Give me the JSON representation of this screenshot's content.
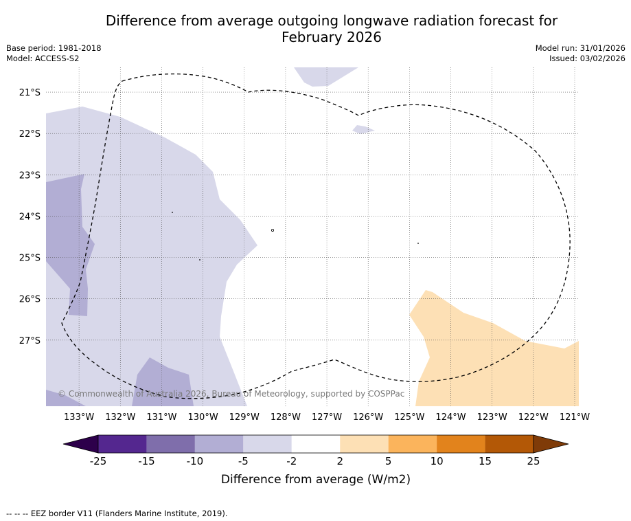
{
  "title": {
    "line1": "Difference from average outgoing longwave radiation forecast for",
    "line2": "February 2026"
  },
  "meta": {
    "base_period": "Base period: 1981-2018",
    "model": "Model: ACCESS-S2",
    "model_run": "Model run: 31/01/2026",
    "issued": "Issued: 03/02/2026"
  },
  "credit": "© Commonwealth of Australia 2026, Bureau of Meteorology, supported by COSPPac",
  "footnote": "--  --  -- EEZ border V11 (Flanders Marine Institute, 2019).",
  "map": {
    "lon_labels": [
      "133°W",
      "132°W",
      "131°W",
      "130°W",
      "129°W",
      "128°W",
      "127°W",
      "126°W",
      "125°W",
      "124°W",
      "123°W",
      "122°W",
      "121°W"
    ],
    "lat_labels": [
      "21°S",
      "22°S",
      "23°S",
      "24°S",
      "25°S",
      "26°S",
      "27°S"
    ],
    "lon_range": [
      -133.8,
      -120.9
    ],
    "lat_range": [
      -28.6,
      -20.4
    ],
    "region_colors": {
      "below_-2_to_-5": "#d8d8ea",
      "below_-5_to_-10": "#b2aed4",
      "above_2_to_5": "#fde0b5",
      "eez_border": "#000000"
    }
  },
  "colorbar": {
    "title": "Difference from average (W/m2)",
    "ticks": [
      "-25",
      "-15",
      "-10",
      "-5",
      "-2",
      "2",
      "5",
      "10",
      "15",
      "25"
    ],
    "colors": [
      "#54278f",
      "#7f6eab",
      "#b2aed4",
      "#d8d8ea",
      "#ffffff",
      "#fde0b5",
      "#fbb45c",
      "#e2831c",
      "#b35806"
    ],
    "under_color": "#2d004b",
    "over_color": "#7f3b08"
  }
}
